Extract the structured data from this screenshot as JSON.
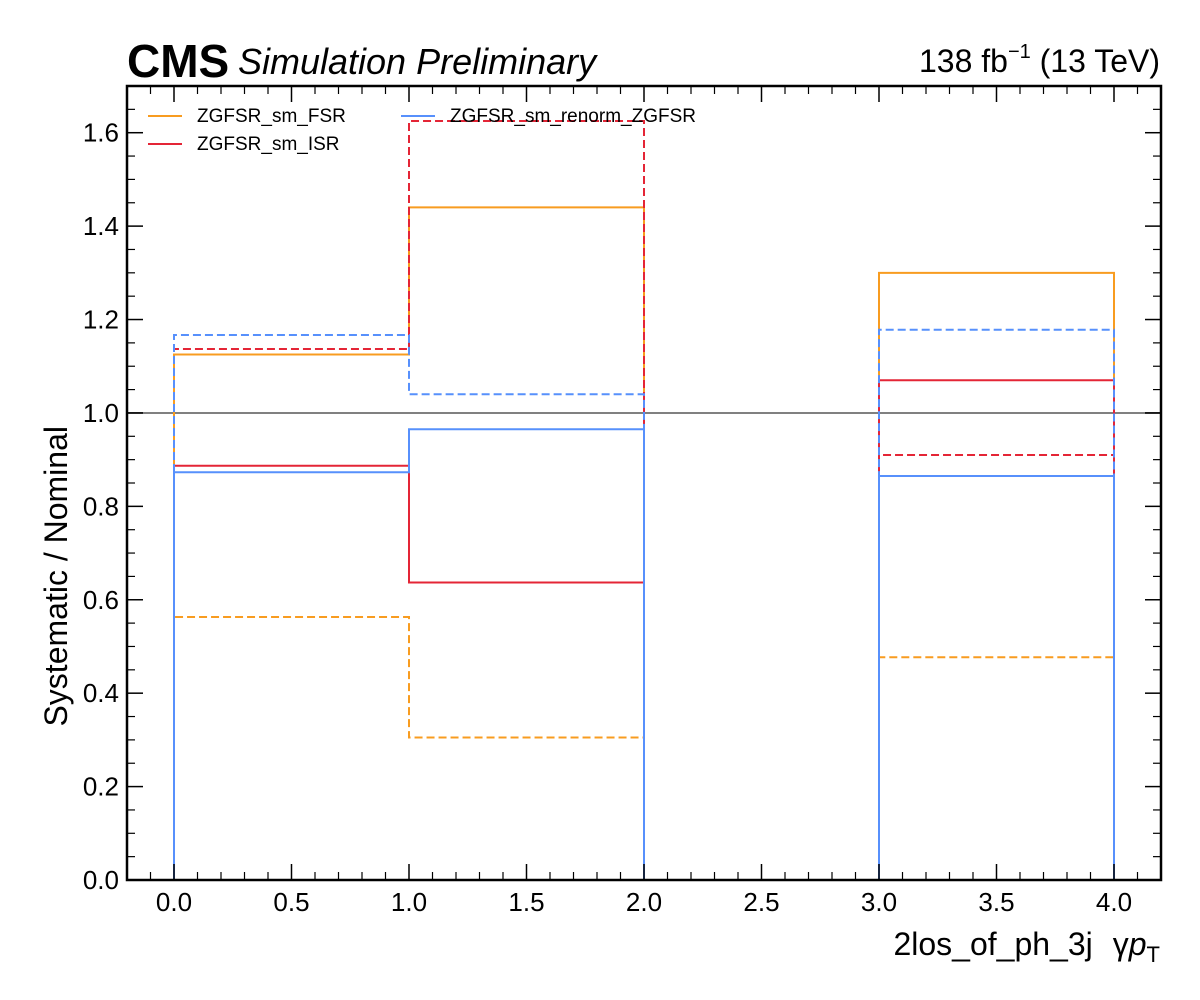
{
  "header": {
    "experiment": "CMS",
    "status": "Simulation Preliminary",
    "lumi_value": "138 fb",
    "lumi_exp": "−1",
    "lumi_energy": "(13 TeV)"
  },
  "chart_data": {
    "type": "line",
    "style": "step-histogram",
    "ylabel": "Systematic / Nominal",
    "xlabel_main": "2los_of_ph_3j",
    "xlabel_gamma": "γ",
    "xlabel_p": "p",
    "xlabel_sub": "T",
    "xlim": [
      -0.2,
      4.2
    ],
    "ylim": [
      0.0,
      1.7
    ],
    "x_ticks": [
      "0.0",
      "0.5",
      "1.0",
      "1.5",
      "2.0",
      "2.5",
      "3.0",
      "3.5",
      "4.0"
    ],
    "y_ticks": [
      "0.0",
      "0.2",
      "0.4",
      "0.6",
      "0.8",
      "1.0",
      "1.2",
      "1.4",
      "1.6"
    ],
    "x_tick_values": [
      0,
      0.5,
      1,
      1.5,
      2,
      2.5,
      3,
      3.5,
      4
    ],
    "y_tick_values": [
      0,
      0.2,
      0.4,
      0.6,
      0.8,
      1.0,
      1.2,
      1.4,
      1.6
    ],
    "bin_edges": [
      0,
      1,
      2,
      3,
      4
    ],
    "reference_line": 1.0,
    "legend_position": "top-left, two columns",
    "series": [
      {
        "name": "ZGFSR_sm_FSR",
        "color": "#f89c20",
        "variation": "up",
        "values": [
          1.125,
          1.44,
          0.0,
          1.3
        ]
      },
      {
        "name": "ZGFSR_sm_FSR",
        "color": "#f89c20",
        "variation": "down",
        "values": [
          0.563,
          0.305,
          0.0,
          0.477
        ]
      },
      {
        "name": "ZGFSR_sm_ISR",
        "color": "#e42536",
        "variation": "up",
        "values": [
          0.887,
          0.637,
          0.0,
          1.07
        ]
      },
      {
        "name": "ZGFSR_sm_ISR",
        "color": "#e42536",
        "variation": "down",
        "values": [
          1.137,
          1.625,
          0.0,
          0.91
        ]
      },
      {
        "name": "ZGFSR_sm_renorm_ZGFSR",
        "color": "#5790fc",
        "variation": "up",
        "values": [
          0.873,
          0.965,
          0.0,
          0.865
        ]
      },
      {
        "name": "ZGFSR_sm_renorm_ZGFSR",
        "color": "#5790fc",
        "variation": "down",
        "values": [
          1.167,
          1.04,
          0.0,
          1.178
        ]
      }
    ],
    "legend": [
      {
        "label": "ZGFSR_sm_FSR",
        "color": "#f89c20"
      },
      {
        "label": "ZGFSR_sm_ISR",
        "color": "#e42536"
      },
      {
        "label": "ZGFSR_sm_renorm_ZGFSR",
        "color": "#5790fc"
      }
    ]
  }
}
